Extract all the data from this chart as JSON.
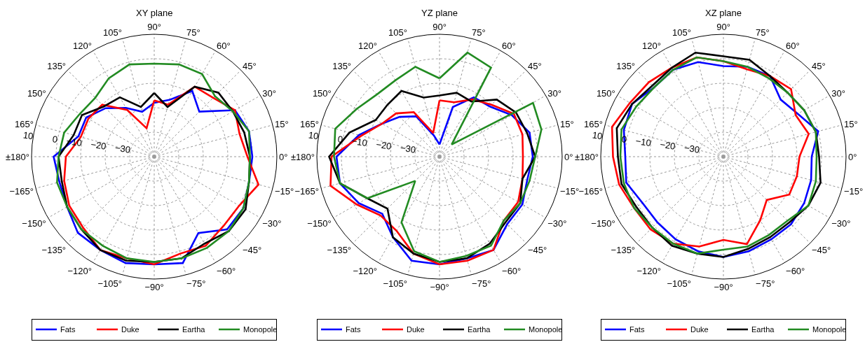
{
  "chart_data": [
    {
      "type": "radar",
      "title": "XY plane",
      "categories": [
        "90°",
        "75°",
        "60°",
        "45°",
        "30°",
        "15°",
        "0°",
        "−15°",
        "−30°",
        "−45°",
        "−60°",
        "−75°",
        "−90°",
        "−105°",
        "−120°",
        "−135°",
        "−150°",
        "−165°",
        "±180°",
        "165°",
        "150°",
        "135°",
        "120°",
        "105°"
      ],
      "ylim": [
        -40,
        10
      ],
      "yticks": [
        -30,
        -20,
        -10,
        0,
        10
      ],
      "grid": true,
      "legend": "bottom",
      "series": [
        {
          "name": "Fats",
          "color": "#0000ff",
          "values": [
            -18,
            -16,
            -9,
            -14,
            -2,
            0,
            0,
            0,
            2,
            2,
            -4,
            5,
            4,
            5,
            4,
            4,
            1,
            0,
            1,
            -8,
            -8,
            -12,
            -17,
            -21
          ]
        },
        {
          "name": "Duke",
          "color": "#ff0000",
          "values": [
            -17,
            -18,
            -7,
            -6,
            -2,
            -4,
            -2,
            4,
            0,
            0,
            2,
            1,
            4,
            3,
            4,
            1,
            0,
            -2,
            -4,
            -9,
            -9,
            -10,
            -18,
            -28
          ]
        },
        {
          "name": "Eartha",
          "color": "#000000",
          "values": [
            -14,
            -19,
            -7,
            -3,
            -3,
            -2,
            -1,
            0,
            3,
            3,
            1,
            3,
            3,
            4,
            4,
            2,
            1,
            -1,
            -1,
            -6,
            -6,
            -11,
            -12,
            -19
          ]
        },
        {
          "name": "Monopole",
          "color": "#228b22",
          "values": [
            -2,
            -1,
            -1,
            -5,
            -3,
            0,
            -1,
            0,
            2,
            3,
            3,
            3,
            3,
            3,
            2,
            2,
            1,
            1,
            -1,
            -2,
            -5,
            -6,
            -3,
            -1
          ]
        }
      ]
    },
    {
      "type": "radar",
      "title": "YZ plane",
      "categories": [
        "90°",
        "75°",
        "60°",
        "45°",
        "30°",
        "15°",
        "0°",
        "−15°",
        "−30°",
        "−45°",
        "−60°",
        "−75°",
        "−90°",
        "−105°",
        "−120°",
        "−135°",
        "−150°",
        "−165°",
        "±180°",
        "165°",
        "150°",
        "135°",
        "120°",
        "105°"
      ],
      "ylim": [
        -40,
        10
      ],
      "yticks": [
        -30,
        -20,
        -10,
        0,
        10
      ],
      "grid": true,
      "legend": "bottom",
      "series": [
        {
          "name": "Fats",
          "color": "#0000ff",
          "values": [
            -35,
            -19,
            -12,
            -11,
            -6,
            -2,
            -2,
            -3,
            -1,
            -1,
            4,
            3,
            4,
            4,
            -2,
            -7,
            -2,
            2,
            2,
            -6,
            -13,
            -17,
            -21,
            -31
          ]
        },
        {
          "name": "Duke",
          "color": "#ff0000",
          "values": [
            -17,
            -17,
            -13,
            -10,
            -5,
            -5,
            -6,
            -5,
            -3,
            -3,
            4,
            4,
            4,
            1,
            -5,
            -6,
            -1,
            6,
            4,
            -7,
            -13,
            -15,
            -19,
            -30
          ]
        },
        {
          "name": "Eartha",
          "color": "#000000",
          "values": [
            -15,
            -13,
            -14,
            -7,
            -4,
            -3,
            -1,
            -5,
            -2,
            -2,
            1,
            3,
            3,
            1,
            -2,
            -10,
            -6,
            2,
            5,
            -2,
            -10,
            -10,
            -9,
            -15
          ]
        },
        {
          "name": "Monopole",
          "color": "#228b22",
          "values": [
            -8,
            4,
            2,
            -33,
            4,
            3,
            -1,
            -2,
            -2,
            -3,
            2,
            2,
            3,
            0,
            -9,
            -26,
            -6,
            2,
            3,
            4,
            -1,
            -4,
            -4,
            -2
          ]
        }
      ]
    },
    {
      "type": "radar",
      "title": "XZ plane",
      "categories": [
        "90°",
        "75°",
        "60°",
        "45°",
        "30°",
        "15°",
        "0°",
        "−15°",
        "−30°",
        "−45°",
        "−60°",
        "−75°",
        "−90°",
        "−105°",
        "−120°",
        "−135°",
        "−150°",
        "−165°",
        "±180°",
        "165°",
        "150°",
        "135°",
        "120°",
        "105°"
      ],
      "ylim": [
        -40,
        10
      ],
      "yticks": [
        -30,
        -20,
        -10,
        0,
        10
      ],
      "grid": true,
      "legend": "bottom",
      "series": [
        {
          "name": "Fats",
          "color": "#0000ff",
          "values": [
            -3,
            -2,
            -2,
            -7,
            -5,
            0,
            -4,
            -3,
            -2,
            -1,
            -1,
            0,
            1,
            0,
            -1,
            -2,
            -2,
            1,
            0,
            2,
            3,
            0,
            1,
            0
          ]
        },
        {
          "name": "Duke",
          "color": "#ff0000",
          "values": [
            -1,
            -3,
            -2,
            -1,
            -6,
            -4,
            -9,
            -9,
            -9,
            -15,
            -10,
            -3,
            -6,
            -2,
            1,
            2,
            2,
            4,
            5,
            7,
            4,
            3,
            2,
            2
          ]
        },
        {
          "name": "Eartha",
          "color": "#000000",
          "values": [
            1,
            1,
            -2,
            -3,
            -2,
            -1,
            -1,
            1,
            0,
            -2,
            -2,
            -1,
            1,
            1,
            2,
            1,
            1,
            3,
            3,
            5,
            3,
            1,
            2,
            4
          ]
        },
        {
          "name": "Monopole",
          "color": "#228b22",
          "values": [
            -1,
            -2,
            -3,
            -3,
            -2,
            -1,
            -2,
            -1,
            0,
            -3,
            -3,
            -2,
            -2,
            1,
            1,
            1,
            2,
            2,
            2,
            3,
            1,
            0,
            1,
            2
          ]
        }
      ]
    }
  ]
}
